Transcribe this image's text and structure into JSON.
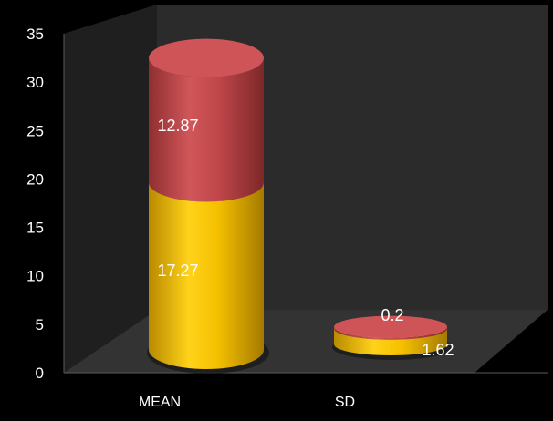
{
  "chart_data": {
    "type": "bar",
    "stacked": true,
    "style": "3d-cylinder",
    "title": "",
    "xlabel": "",
    "ylabel": "",
    "categories": [
      "MEAN",
      "SD"
    ],
    "series": [
      {
        "color": "#f5c000",
        "values": [
          17.27,
          1.62
        ]
      },
      {
        "color": "#c0474a",
        "values": [
          12.87,
          0.2
        ]
      }
    ],
    "data_labels": [
      [
        "17.27",
        "1.62"
      ],
      [
        "12.87",
        "0.2"
      ]
    ],
    "ylim": [
      0,
      35
    ],
    "yticks": [
      "0",
      "5",
      "10",
      "15",
      "20",
      "25",
      "30",
      "35"
    ],
    "grid": false,
    "legend": "none"
  },
  "colors": {
    "background": "#000000",
    "back_wall": "#2b2b2b",
    "side_wall": "#1f1f1f",
    "floor": "#333333",
    "text": "#ffffff"
  }
}
